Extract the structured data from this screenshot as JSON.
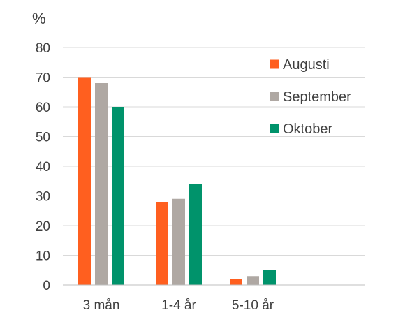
{
  "chart_data": {
    "type": "bar",
    "unit_label": "%",
    "categories": [
      "3 mån",
      "1-4 år",
      "5-10 år"
    ],
    "series": [
      {
        "name": "Augusti",
        "color": "#FF5F1F",
        "values": [
          70,
          28,
          2
        ]
      },
      {
        "name": "September",
        "color": "#AFA8A3",
        "values": [
          68,
          29,
          3
        ]
      },
      {
        "name": "Oktober",
        "color": "#00936B",
        "values": [
          60,
          34,
          5
        ]
      }
    ],
    "ylim": [
      0,
      80
    ],
    "yticks": [
      0,
      10,
      20,
      30,
      40,
      50,
      60,
      70,
      80
    ],
    "grid": true,
    "grid_color": "#D9D9D9",
    "axis_color": "#BFBFBF",
    "legend_position": "top-right"
  }
}
